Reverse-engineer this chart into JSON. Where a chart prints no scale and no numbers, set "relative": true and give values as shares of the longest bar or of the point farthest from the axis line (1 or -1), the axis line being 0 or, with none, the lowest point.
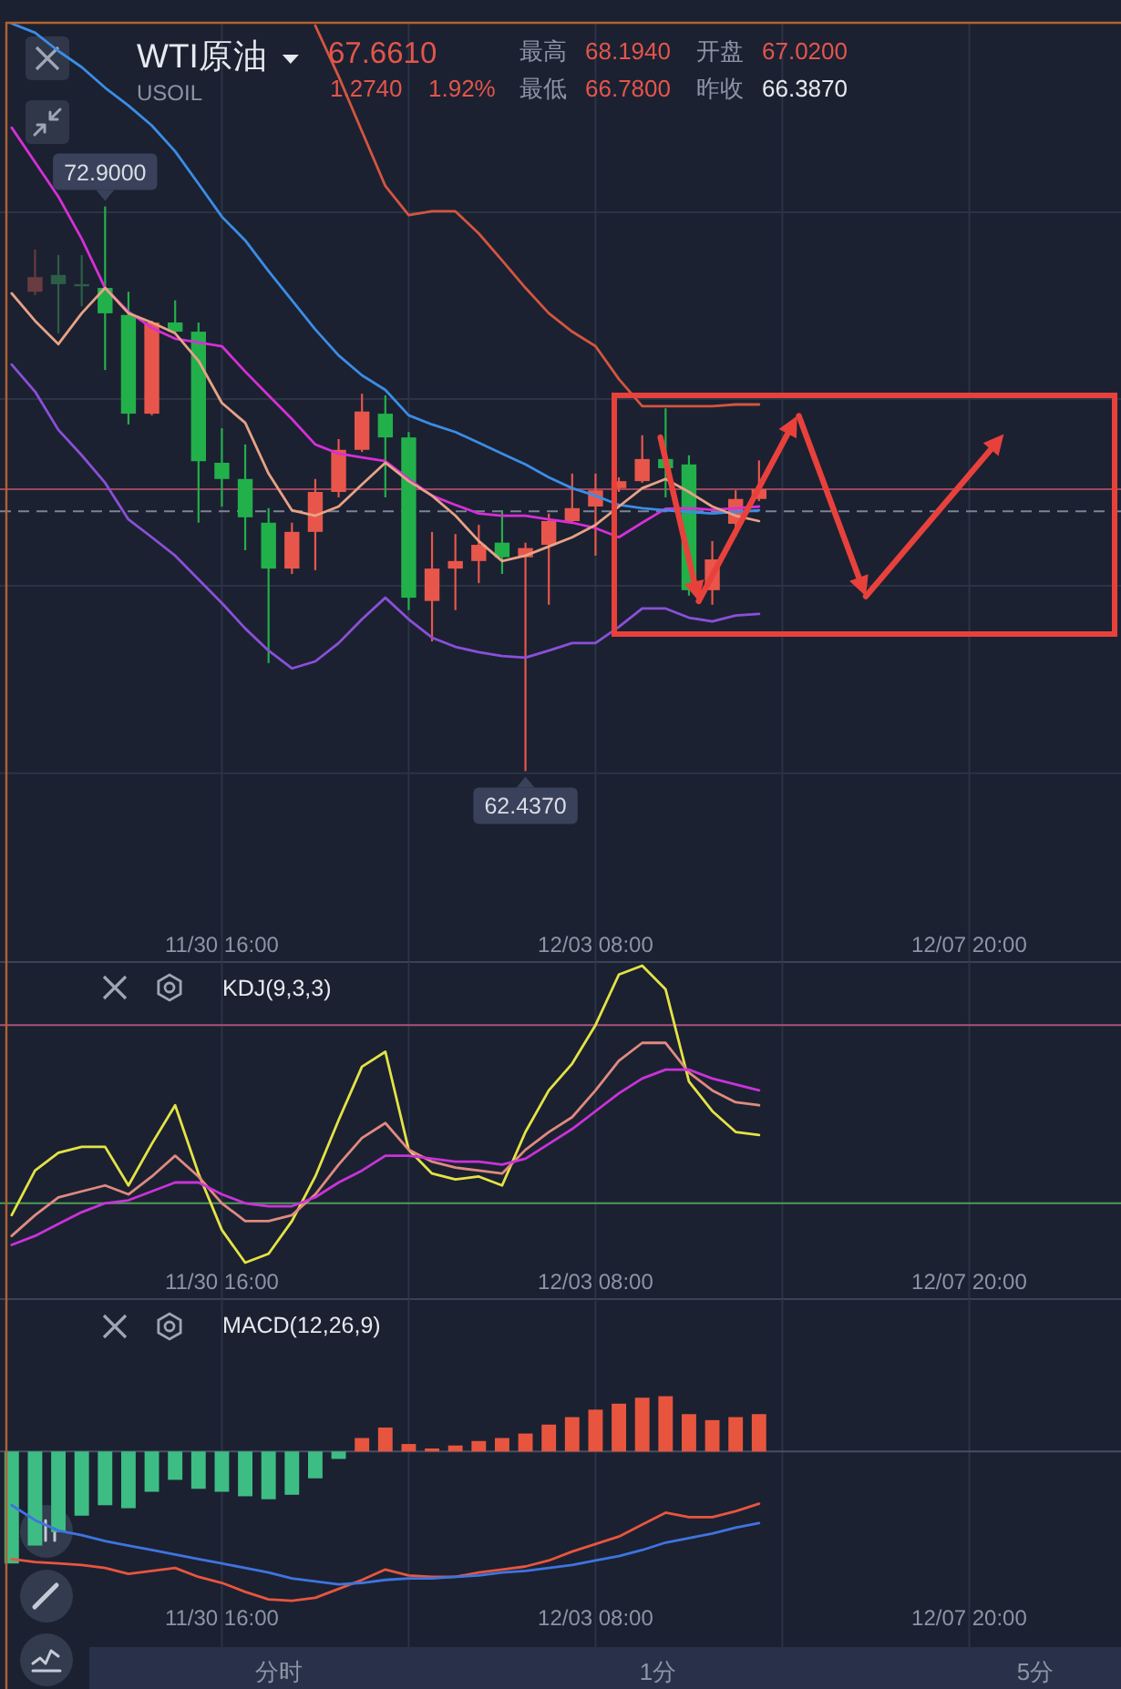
{
  "chart_data": [
    {
      "type": "candlestick",
      "title": "WTI原油",
      "subtitle": "USOIL",
      "categories": [
        null,
        null,
        null,
        null,
        null,
        null,
        null,
        null,
        null,
        "11/30 16:00",
        null,
        null,
        null,
        null,
        null,
        null,
        null,
        null,
        null,
        null,
        null,
        null,
        null,
        null,
        null,
        "12/03 08:00",
        null,
        null,
        null,
        null,
        null,
        null,
        null,
        null,
        null,
        null,
        null,
        null,
        null,
        null,
        null,
        "12/07 20:00",
        null,
        null,
        null,
        null,
        null,
        null
      ],
      "ohlc": [
        null,
        [
          71.32,
          72.1,
          71.26,
          71.59
        ],
        [
          71.63,
          72.0,
          70.55,
          71.46
        ],
        [
          71.46,
          72.0,
          71.05,
          71.43
        ],
        [
          71.39,
          72.9,
          69.87,
          70.92
        ],
        [
          70.89,
          71.32,
          68.86,
          69.06
        ],
        [
          69.06,
          70.78,
          69.03,
          70.75
        ],
        [
          70.75,
          71.16,
          70.55,
          70.58
        ],
        [
          70.58,
          70.75,
          67.04,
          68.18
        ],
        [
          68.15,
          68.79,
          67.34,
          67.85
        ],
        [
          67.85,
          68.49,
          66.53,
          67.14
        ],
        [
          67.04,
          67.31,
          64.44,
          66.19
        ],
        [
          66.19,
          67.04,
          66.09,
          66.87
        ],
        [
          66.87,
          67.85,
          66.16,
          67.61
        ],
        [
          67.61,
          68.59,
          67.51,
          68.39
        ],
        [
          68.39,
          69.43,
          68.35,
          69.1
        ],
        [
          69.06,
          69.4,
          67.51,
          68.62
        ],
        [
          68.62,
          68.72,
          65.42,
          65.65
        ],
        [
          65.59,
          66.87,
          64.84,
          66.19
        ],
        [
          66.19,
          66.83,
          65.42,
          66.33
        ],
        [
          66.33,
          67.0,
          65.92,
          66.63
        ],
        [
          66.67,
          67.27,
          66.09,
          66.4
        ],
        [
          66.4,
          66.67,
          62.437,
          66.57
        ],
        [
          66.63,
          67.21,
          65.52,
          67.07
        ],
        [
          67.07,
          67.95,
          67.04,
          67.31
        ],
        [
          67.34,
          67.95,
          66.43,
          67.64
        ],
        [
          67.68,
          67.88,
          67.61,
          67.81
        ],
        [
          67.81,
          68.66,
          67.78,
          68.22
        ],
        [
          68.22,
          69.16,
          67.51,
          68.05
        ],
        [
          68.12,
          68.29,
          65.69,
          65.79
        ],
        [
          65.79,
          66.7,
          65.52,
          66.36
        ],
        [
          67.02,
          67.64,
          66.78,
          67.48
        ],
        [
          67.48,
          68.194,
          67.44,
          67.661
        ],
        null,
        null,
        null,
        null,
        null,
        null,
        null,
        null,
        null,
        null,
        null,
        null,
        null,
        null,
        null
      ],
      "colors": [
        null,
        "#6a3b40",
        "#2d5e46",
        "#2d5e46",
        "#22b04b",
        "#22b04b",
        "#e8564b",
        "#22b04b",
        "#22b04b",
        "#22b04b",
        "#22b04b",
        "#22b04b",
        "#e8564b",
        "#e8564b",
        "#e8564b",
        "#e8564b",
        "#22b04b",
        "#22b04b",
        "#e8564b",
        "#e8564b",
        "#e8564b",
        "#22b04b",
        "#e8564b",
        "#e8564b",
        "#e8564b",
        "#e8564b",
        "#e8564b",
        "#e8564b",
        "#22b04b",
        "#22b04b",
        "#e8564b",
        "#e8564b",
        "#e8564b",
        null,
        null,
        null,
        null,
        null,
        null,
        null,
        null,
        null,
        null,
        null,
        null,
        null,
        null,
        null
      ],
      "series": [
        {
          "type": "line",
          "color": "#d4553f",
          "values": [
            null,
            null,
            null,
            null,
            null,
            null,
            null,
            null,
            null,
            null,
            null,
            null,
            null,
            76.25,
            75.31,
            74.29,
            73.28,
            72.74,
            72.81,
            72.81,
            72.4,
            71.9,
            71.39,
            70.92,
            70.58,
            70.31,
            69.7,
            69.2,
            69.2,
            69.2,
            69.2,
            69.23,
            69.23,
            null,
            null,
            null,
            null,
            null,
            null,
            null,
            null,
            null,
            null,
            null,
            null,
            null,
            null,
            null
          ]
        },
        {
          "type": "line",
          "color": "#8a50d8",
          "values": [
            69.97,
            69.47,
            68.76,
            68.29,
            67.78,
            67.1,
            66.77,
            66.43,
            65.99,
            65.55,
            65.08,
            64.67,
            64.34,
            64.47,
            64.81,
            65.25,
            65.65,
            65.25,
            64.91,
            64.74,
            64.64,
            64.57,
            64.54,
            64.67,
            64.81,
            64.81,
            65.11,
            65.45,
            65.45,
            65.28,
            65.21,
            65.32,
            65.35,
            null,
            null,
            null,
            null,
            null,
            null,
            null,
            null,
            null,
            null,
            null,
            null,
            null,
            null,
            null
          ]
        },
        {
          "type": "line",
          "color": "#d62fd6",
          "values": [
            74.36,
            73.72,
            73.08,
            72.3,
            71.39,
            70.95,
            70.65,
            70.45,
            70.38,
            70.31,
            69.84,
            69.4,
            68.96,
            68.49,
            68.32,
            68.25,
            68.18,
            67.85,
            67.54,
            67.37,
            67.21,
            67.17,
            67.17,
            67.1,
            67.04,
            66.94,
            66.77,
            67.04,
            67.3,
            67.31,
            67.28,
            67.31,
            67.34,
            null,
            null,
            null,
            null,
            null,
            null,
            null,
            null,
            null,
            null,
            null,
            null,
            null,
            null,
            null
          ]
        },
        {
          "type": "line",
          "color": "#3b8de6",
          "values": [
            76.29,
            76.12,
            75.78,
            75.48,
            75.1,
            74.77,
            74.4,
            73.92,
            73.32,
            72.71,
            72.27,
            71.7,
            71.16,
            70.62,
            70.14,
            69.77,
            69.5,
            69.03,
            68.86,
            68.72,
            68.52,
            68.32,
            68.12,
            67.88,
            67.68,
            67.54,
            67.37,
            67.31,
            67.27,
            67.24,
            67.21,
            67.24,
            67.27,
            null,
            null,
            null,
            null,
            null,
            null,
            null,
            null,
            null,
            null,
            null,
            null,
            null,
            null,
            null
          ]
        },
        {
          "type": "line",
          "color": "#e8a286",
          "values": [
            71.29,
            70.78,
            70.35,
            70.92,
            71.39,
            70.92,
            70.75,
            70.55,
            70.04,
            69.26,
            68.89,
            67.95,
            67.27,
            67.17,
            67.34,
            67.75,
            68.15,
            67.81,
            67.54,
            67.17,
            66.7,
            66.33,
            66.43,
            66.6,
            66.77,
            67.0,
            67.34,
            67.68,
            67.85,
            67.61,
            67.34,
            67.17,
            67.07,
            null,
            null,
            null,
            null,
            null,
            null,
            null,
            null,
            null,
            null,
            null,
            null,
            null,
            null,
            null
          ]
        }
      ],
      "ylim": [
        58.9,
        76.32
      ],
      "yticks": [
        {
          "value": 72.79,
          "label": null
        },
        {
          "value": 69.33,
          "label": null
        },
        {
          "value": 65.87,
          "label": null
        },
        {
          "value": 62.4,
          "label": null
        }
      ],
      "grid": true,
      "tick_labels": "x",
      "ref_lines": [
        {
          "axis": "y",
          "value": 67.66,
          "color": "#9e475c"
        },
        {
          "axis": "y",
          "value": 67.25,
          "color": "#7b8497",
          "line_style": "dashed"
        }
      ],
      "annotations": [
        "67.6610",
        "1.2740",
        "1.92%",
        "最高",
        "68.1940",
        "开盘",
        "67.0200",
        "最低",
        "66.7800",
        "昨收",
        "66.3870",
        {
          "text": "72.9000",
          "y": 72.9
        },
        {
          "text": "62.4370",
          "y": 62.437
        }
      ]
    },
    {
      "type": "line",
      "title": "KDJ(9,3,3)",
      "relative": true,
      "categories": [
        null,
        null,
        null,
        null,
        null,
        null,
        null,
        null,
        null,
        "11/30 16:00",
        null,
        null,
        null,
        null,
        null,
        null,
        null,
        null,
        null,
        null,
        null,
        null,
        null,
        null,
        null,
        "12/03 08:00",
        null,
        null,
        null,
        null,
        null,
        null,
        null,
        null,
        null,
        null,
        null,
        null,
        null,
        null,
        null,
        "12/07 20:00",
        null,
        null,
        null,
        null,
        null,
        null
      ],
      "series": [
        {
          "color": "#e4e344",
          "values": [
            0.16,
            0.31,
            0.37,
            0.39,
            0.39,
            0.26,
            0.4,
            0.53,
            0.3,
            0.11,
            0,
            0.03,
            0.14,
            0.29,
            0.48,
            0.66,
            0.71,
            0.38,
            0.3,
            0.28,
            0.29,
            0.26,
            0.44,
            0.58,
            0.67,
            0.8,
            0.97,
            1,
            0.92,
            0.61,
            0.51,
            0.44,
            0.43,
            null,
            null,
            null,
            null,
            null,
            null,
            null,
            null,
            null,
            null,
            null,
            null,
            null,
            null,
            null
          ]
        },
        {
          "color": "#e08a80",
          "values": [
            0.09,
            0.16,
            0.22,
            0.24,
            0.26,
            0.23,
            0.29,
            0.36,
            0.29,
            0.2,
            0.14,
            0.14,
            0.16,
            0.23,
            0.33,
            0.42,
            0.47,
            0.38,
            0.34,
            0.32,
            0.31,
            0.3,
            0.38,
            0.44,
            0.49,
            0.58,
            0.68,
            0.74,
            0.74,
            0.64,
            0.58,
            0.54,
            0.53,
            null,
            null,
            null,
            null,
            null,
            null,
            null,
            null,
            null,
            null,
            null,
            null,
            null,
            null,
            null
          ]
        },
        {
          "color": "#c933d8",
          "values": [
            0.06,
            0.09,
            0.13,
            0.17,
            0.2,
            0.21,
            0.24,
            0.27,
            0.27,
            0.23,
            0.2,
            0.19,
            0.19,
            0.22,
            0.27,
            0.31,
            0.36,
            0.36,
            0.35,
            0.34,
            0.34,
            0.33,
            0.35,
            0.4,
            0.45,
            0.51,
            0.57,
            0.62,
            0.65,
            0.65,
            0.62,
            0.6,
            0.58,
            null,
            null,
            null,
            null,
            null,
            null,
            null,
            null,
            null,
            null,
            null,
            null,
            null,
            null,
            null
          ]
        }
      ],
      "ref_lines": [
        {
          "axis": "y",
          "value": 0.8,
          "color": "#a8527a"
        },
        {
          "axis": "y",
          "value": 0.2,
          "color": "#4f9a5a"
        }
      ],
      "grid": "x"
    },
    {
      "type": "bar",
      "title": "MACD(12,26,9)",
      "relative": true,
      "categories": [
        null,
        null,
        null,
        null,
        null,
        null,
        null,
        null,
        null,
        "11/30 16:00",
        null,
        null,
        null,
        null,
        null,
        null,
        null,
        null,
        null,
        null,
        null,
        null,
        null,
        null,
        null,
        "12/03 08:00",
        null,
        null,
        null,
        null,
        null,
        null,
        null,
        null,
        null,
        null,
        null,
        null,
        null,
        null,
        null,
        "12/07 20:00",
        null,
        null,
        null,
        null,
        null,
        null
      ],
      "series": [
        {
          "type": "bar",
          "colors": [
            "#3dbd84",
            "#3dbd84",
            "#3dbd84",
            "#3dbd84",
            "#3dbd84",
            "#3dbd84",
            "#3dbd84",
            "#3dbd84",
            "#3dbd84",
            "#3dbd84",
            "#3dbd84",
            "#3dbd84",
            "#3dbd84",
            "#3dbd84",
            "#3dbd84",
            "#e8553f",
            "#e8553f",
            "#e8553f",
            "#e8553f",
            "#e8553f",
            "#e8553f",
            "#e8553f",
            "#e8553f",
            "#e8553f",
            "#e8553f",
            "#e8553f",
            "#e8553f",
            "#e8553f",
            "#e8553f",
            "#e8553f",
            "#e8553f",
            "#e8553f",
            "#e8553f",
            null,
            null,
            null,
            null,
            null,
            null,
            null,
            null,
            null,
            null,
            null,
            null,
            null,
            null,
            null
          ],
          "values": [
            -0.75,
            -0.63,
            -0.54,
            -0.43,
            -0.36,
            -0.38,
            -0.27,
            -0.19,
            -0.25,
            -0.27,
            -0.3,
            -0.32,
            -0.29,
            -0.18,
            -0.05,
            0.09,
            0.16,
            0.05,
            0.02,
            0.04,
            0.07,
            0.09,
            0.12,
            0.18,
            0.23,
            0.28,
            0.32,
            0.36,
            0.37,
            0.25,
            0.21,
            0.23,
            0.25,
            null,
            null,
            null,
            null,
            null,
            null,
            null,
            null,
            null,
            null,
            null,
            null,
            null,
            null,
            null
          ]
        },
        {
          "type": "line",
          "color": "#e8553f",
          "values": [
            -0.72,
            -0.74,
            -0.75,
            -0.76,
            -0.78,
            -0.82,
            -0.8,
            -0.78,
            -0.84,
            -0.88,
            -0.94,
            -0.99,
            -1,
            -0.98,
            -0.92,
            -0.86,
            -0.79,
            -0.83,
            -0.84,
            -0.84,
            -0.81,
            -0.79,
            -0.77,
            -0.73,
            -0.67,
            -0.62,
            -0.57,
            -0.49,
            -0.41,
            -0.44,
            -0.44,
            -0.4,
            -0.35,
            null,
            null,
            null,
            null,
            null,
            null,
            null,
            null,
            null,
            null,
            null,
            null,
            null,
            null,
            null
          ]
        },
        {
          "type": "line",
          "color": "#3f74e0",
          "values": [
            -0.36,
            -0.46,
            -0.53,
            -0.56,
            -0.6,
            -0.63,
            -0.66,
            -0.69,
            -0.72,
            -0.75,
            -0.78,
            -0.81,
            -0.85,
            -0.87,
            -0.89,
            -0.88,
            -0.86,
            -0.85,
            -0.85,
            -0.84,
            -0.83,
            -0.81,
            -0.8,
            -0.78,
            -0.76,
            -0.73,
            -0.7,
            -0.66,
            -0.61,
            -0.58,
            -0.55,
            -0.51,
            -0.48,
            null,
            null,
            null,
            null,
            null,
            null,
            null,
            null,
            null,
            null,
            null,
            null,
            null,
            null,
            null
          ]
        }
      ],
      "grid": "x",
      "annotations": [
        "分时",
        "1分",
        "5分"
      ]
    }
  ]
}
